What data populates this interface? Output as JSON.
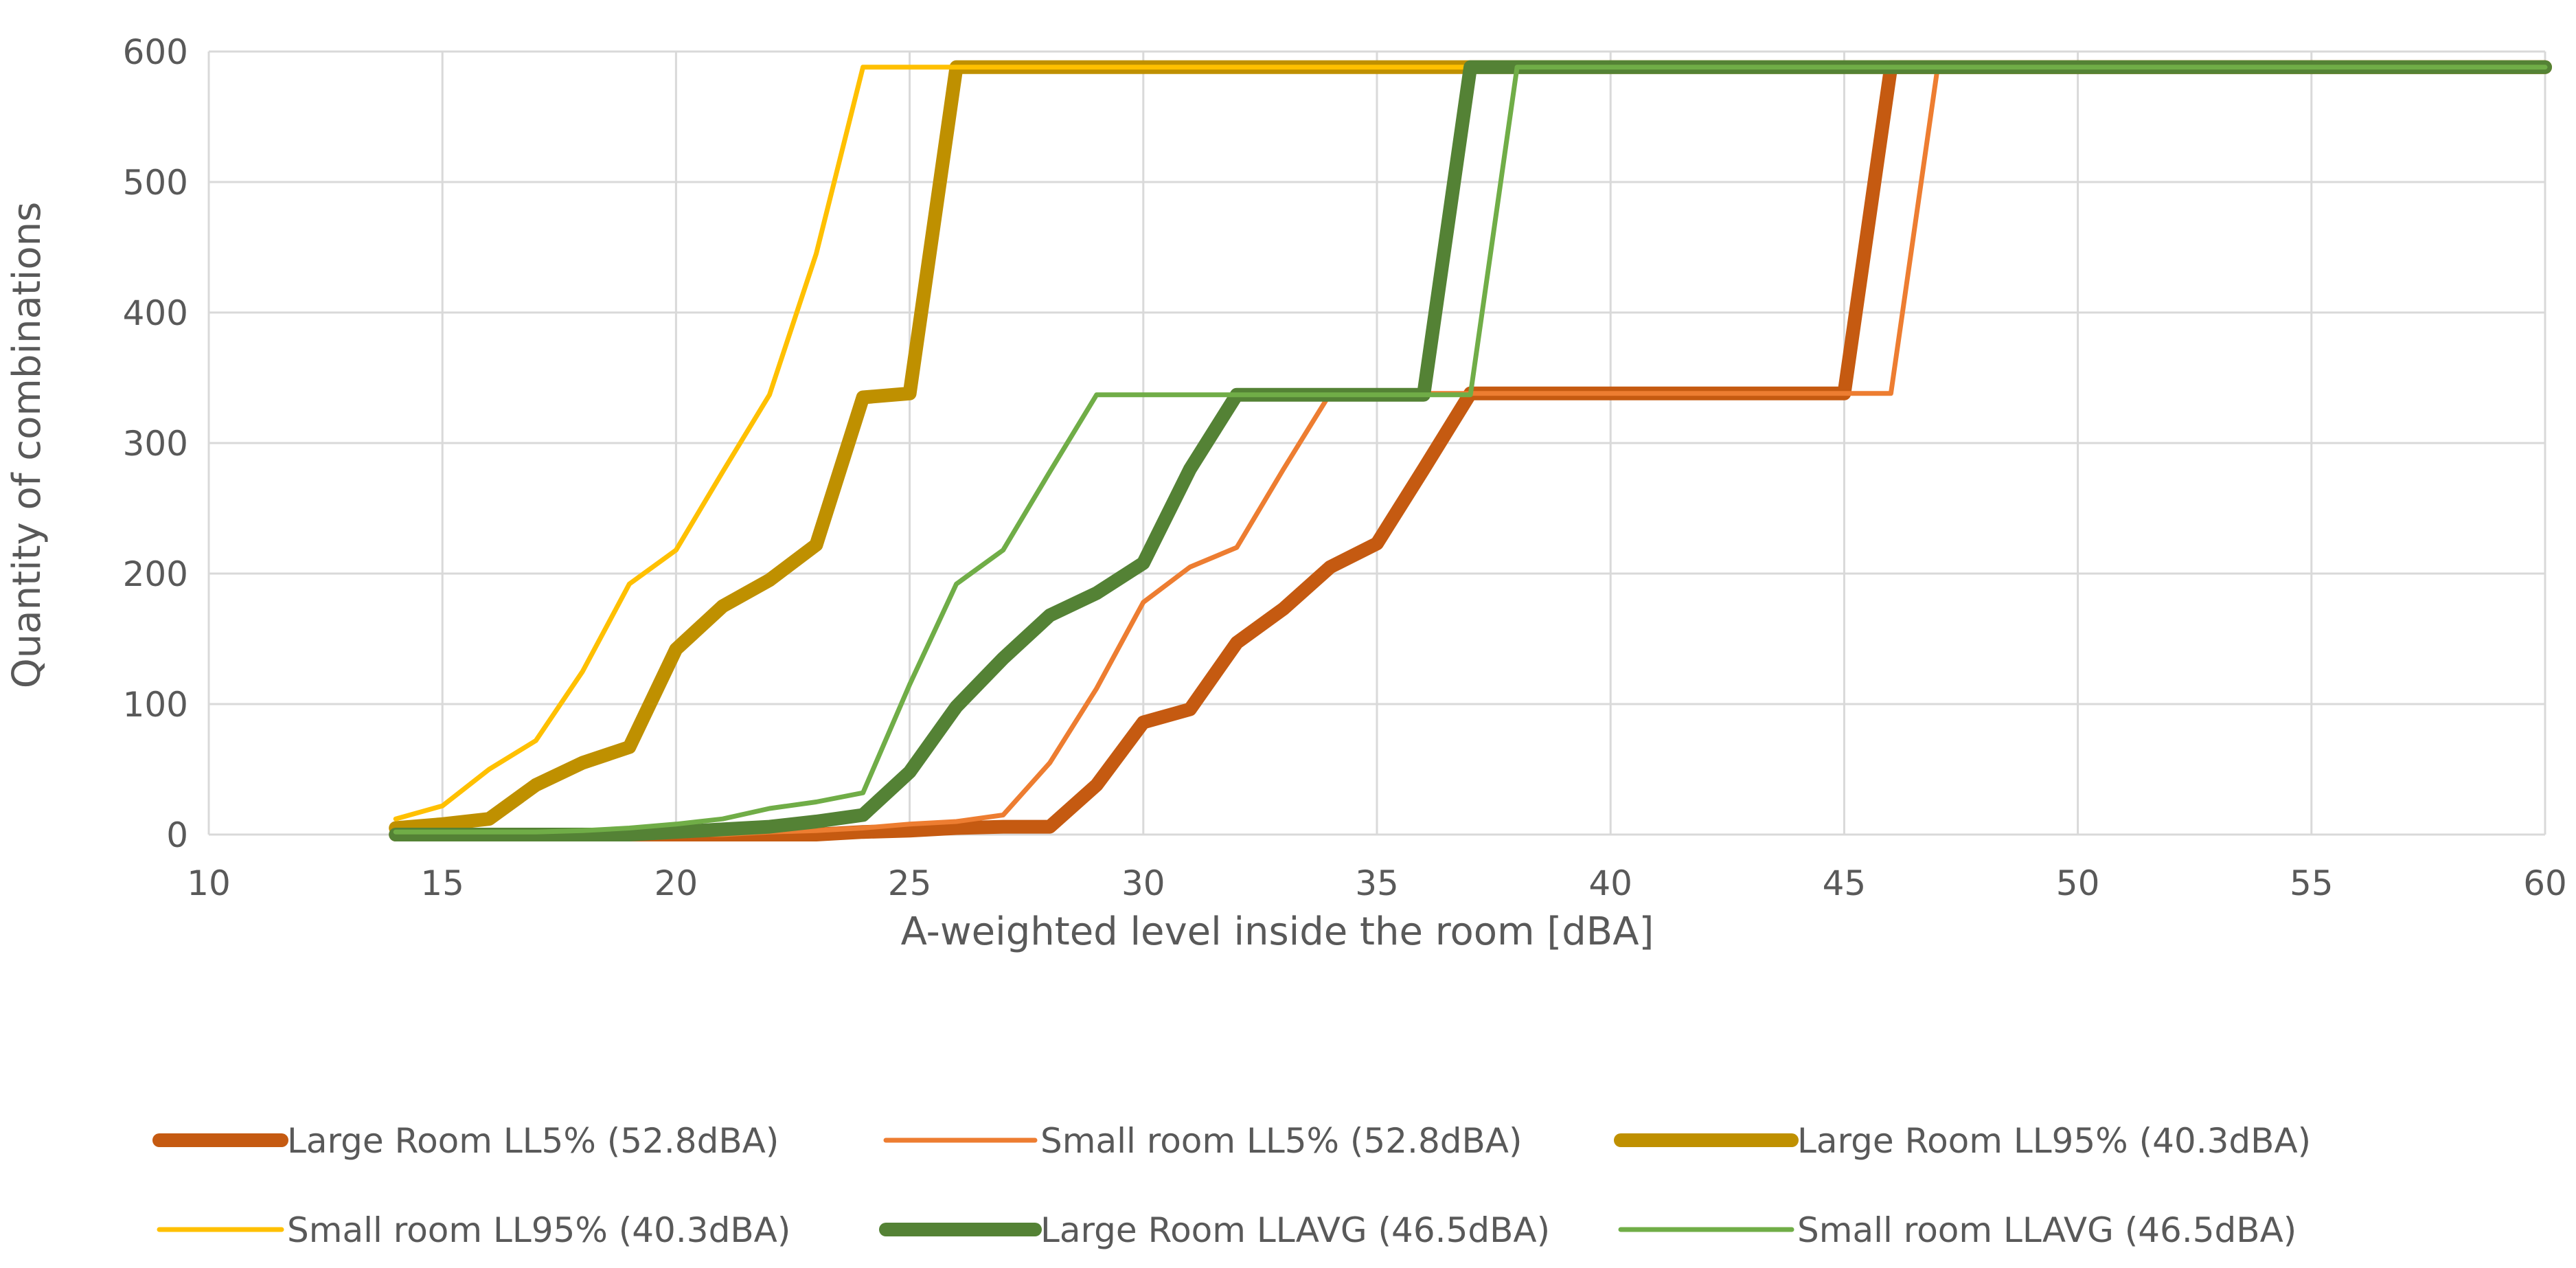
{
  "chart_data": {
    "type": "line",
    "title": "",
    "xlabel": "A-weighted level inside the room [dBA]",
    "ylabel": "Quantity of combinations",
    "xlim": [
      10,
      60
    ],
    "ylim": [
      0,
      600
    ],
    "x_ticks": [
      10,
      15,
      20,
      25,
      30,
      35,
      40,
      45,
      50,
      55,
      60
    ],
    "y_ticks": [
      0,
      100,
      200,
      300,
      400,
      500,
      600
    ],
    "grid": true,
    "legend_position": "bottom",
    "series": [
      {
        "name": "Large Room LL5% (52.8dBA)",
        "color": "#C55A11",
        "weight": "thick",
        "points": [
          [
            14,
            0
          ],
          [
            15,
            0
          ],
          [
            16,
            0
          ],
          [
            17,
            0
          ],
          [
            18,
            0
          ],
          [
            19,
            0
          ],
          [
            20,
            0
          ],
          [
            21,
            0
          ],
          [
            22,
            0
          ],
          [
            23,
            0
          ],
          [
            24,
            2
          ],
          [
            25,
            3
          ],
          [
            26,
            5
          ],
          [
            27,
            6
          ],
          [
            28,
            6
          ],
          [
            29,
            38
          ],
          [
            30,
            86
          ],
          [
            31,
            96
          ],
          [
            32,
            147
          ],
          [
            33,
            173
          ],
          [
            34,
            205
          ],
          [
            35,
            223
          ],
          [
            36,
            280
          ],
          [
            37,
            338
          ],
          [
            38,
            338
          ],
          [
            40,
            338
          ],
          [
            45,
            338
          ],
          [
            46,
            588
          ],
          [
            60,
            588
          ]
        ]
      },
      {
        "name": "Small room LL5% (52.8dBA)",
        "color": "#ED7D31",
        "weight": "thin",
        "points": [
          [
            14,
            0
          ],
          [
            15,
            0
          ],
          [
            16,
            0
          ],
          [
            17,
            0
          ],
          [
            18,
            0
          ],
          [
            19,
            0
          ],
          [
            20,
            0
          ],
          [
            21,
            0
          ],
          [
            22,
            2
          ],
          [
            23,
            3
          ],
          [
            24,
            5
          ],
          [
            25,
            8
          ],
          [
            26,
            10
          ],
          [
            27,
            15
          ],
          [
            28,
            55
          ],
          [
            29,
            112
          ],
          [
            30,
            178
          ],
          [
            31,
            205
          ],
          [
            32,
            220
          ],
          [
            33,
            280
          ],
          [
            34,
            338
          ],
          [
            35,
            338
          ],
          [
            40,
            338
          ],
          [
            45,
            338
          ],
          [
            46,
            338
          ],
          [
            47,
            588
          ],
          [
            60,
            588
          ]
        ]
      },
      {
        "name": "Large Room LL95% (40.3dBA)",
        "color": "#BF9000",
        "weight": "thick",
        "points": [
          [
            14,
            5
          ],
          [
            15,
            8
          ],
          [
            16,
            12
          ],
          [
            17,
            38
          ],
          [
            18,
            55
          ],
          [
            19,
            67
          ],
          [
            20,
            142
          ],
          [
            21,
            175
          ],
          [
            22,
            195
          ],
          [
            23,
            222
          ],
          [
            24,
            335
          ],
          [
            25,
            338
          ],
          [
            26,
            588
          ],
          [
            37,
            588
          ],
          [
            60,
            588
          ]
        ]
      },
      {
        "name": "Small room LL95% (40.3dBA)",
        "color": "#FFC000",
        "weight": "thin",
        "points": [
          [
            14,
            12
          ],
          [
            15,
            22
          ],
          [
            16,
            50
          ],
          [
            17,
            72
          ],
          [
            18,
            125
          ],
          [
            19,
            192
          ],
          [
            20,
            218
          ],
          [
            21,
            278
          ],
          [
            22,
            337
          ],
          [
            23,
            445
          ],
          [
            24,
            588
          ],
          [
            37,
            588
          ]
        ]
      },
      {
        "name": "Large Room LLAVG (46.5dBA)",
        "color": "#548235",
        "weight": "thick",
        "points": [
          [
            14,
            0
          ],
          [
            15,
            0
          ],
          [
            16,
            0
          ],
          [
            17,
            0
          ],
          [
            18,
            0
          ],
          [
            19,
            0
          ],
          [
            20,
            2
          ],
          [
            21,
            4
          ],
          [
            22,
            6
          ],
          [
            23,
            10
          ],
          [
            24,
            15
          ],
          [
            25,
            48
          ],
          [
            26,
            98
          ],
          [
            27,
            135
          ],
          [
            28,
            168
          ],
          [
            29,
            185
          ],
          [
            30,
            208
          ],
          [
            31,
            280
          ],
          [
            32,
            337
          ],
          [
            33,
            337
          ],
          [
            34,
            337
          ],
          [
            35,
            337
          ],
          [
            36,
            337
          ],
          [
            37,
            588
          ],
          [
            60,
            588
          ]
        ]
      },
      {
        "name": "Small room LLAVG (46.5dBA)",
        "color": "#70AD47",
        "weight": "thin",
        "points": [
          [
            14,
            2
          ],
          [
            15,
            2
          ],
          [
            16,
            2
          ],
          [
            17,
            2
          ],
          [
            18,
            3
          ],
          [
            19,
            5
          ],
          [
            20,
            8
          ],
          [
            21,
            12
          ],
          [
            22,
            20
          ],
          [
            23,
            25
          ],
          [
            24,
            32
          ],
          [
            25,
            115
          ],
          [
            26,
            192
          ],
          [
            27,
            218
          ],
          [
            28,
            278
          ],
          [
            29,
            337
          ],
          [
            30,
            337
          ],
          [
            35,
            337
          ],
          [
            36,
            337
          ],
          [
            37,
            337
          ],
          [
            38,
            588
          ],
          [
            60,
            588
          ]
        ]
      }
    ]
  }
}
